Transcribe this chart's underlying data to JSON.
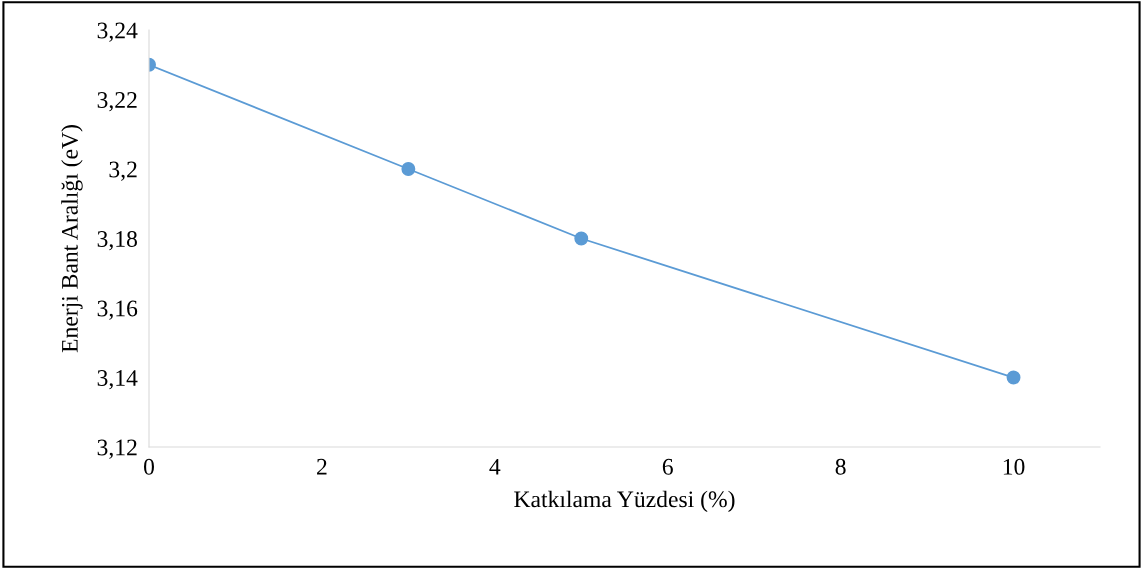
{
  "chart_data": {
    "type": "line",
    "xlabel": "Katkılama Yüzdesi (%)",
    "ylabel": "Enerji Bant Aralığı (eV)",
    "x": [
      0,
      3,
      5,
      10
    ],
    "series": [
      {
        "color": "#5b9bd5",
        "values": [
          3.23,
          3.2,
          3.18,
          3.14
        ]
      }
    ],
    "marker": "circle",
    "line_style": "solid",
    "grid": false,
    "legend": false,
    "xlim": [
      0,
      11
    ],
    "xticks": [
      0,
      2,
      4,
      6,
      8,
      10
    ],
    "ylim": [
      3.12,
      3.24
    ],
    "yticks": [
      {
        "value": 3.12,
        "label": "3,12"
      },
      {
        "value": 3.14,
        "label": "3,14"
      },
      {
        "value": 3.16,
        "label": "3,16"
      },
      {
        "value": 3.18,
        "label": "3,18"
      },
      {
        "value": 3.2,
        "label": "3,2"
      },
      {
        "value": 3.22,
        "label": "3,22"
      },
      {
        "value": 3.24,
        "label": "3,24"
      }
    ]
  }
}
